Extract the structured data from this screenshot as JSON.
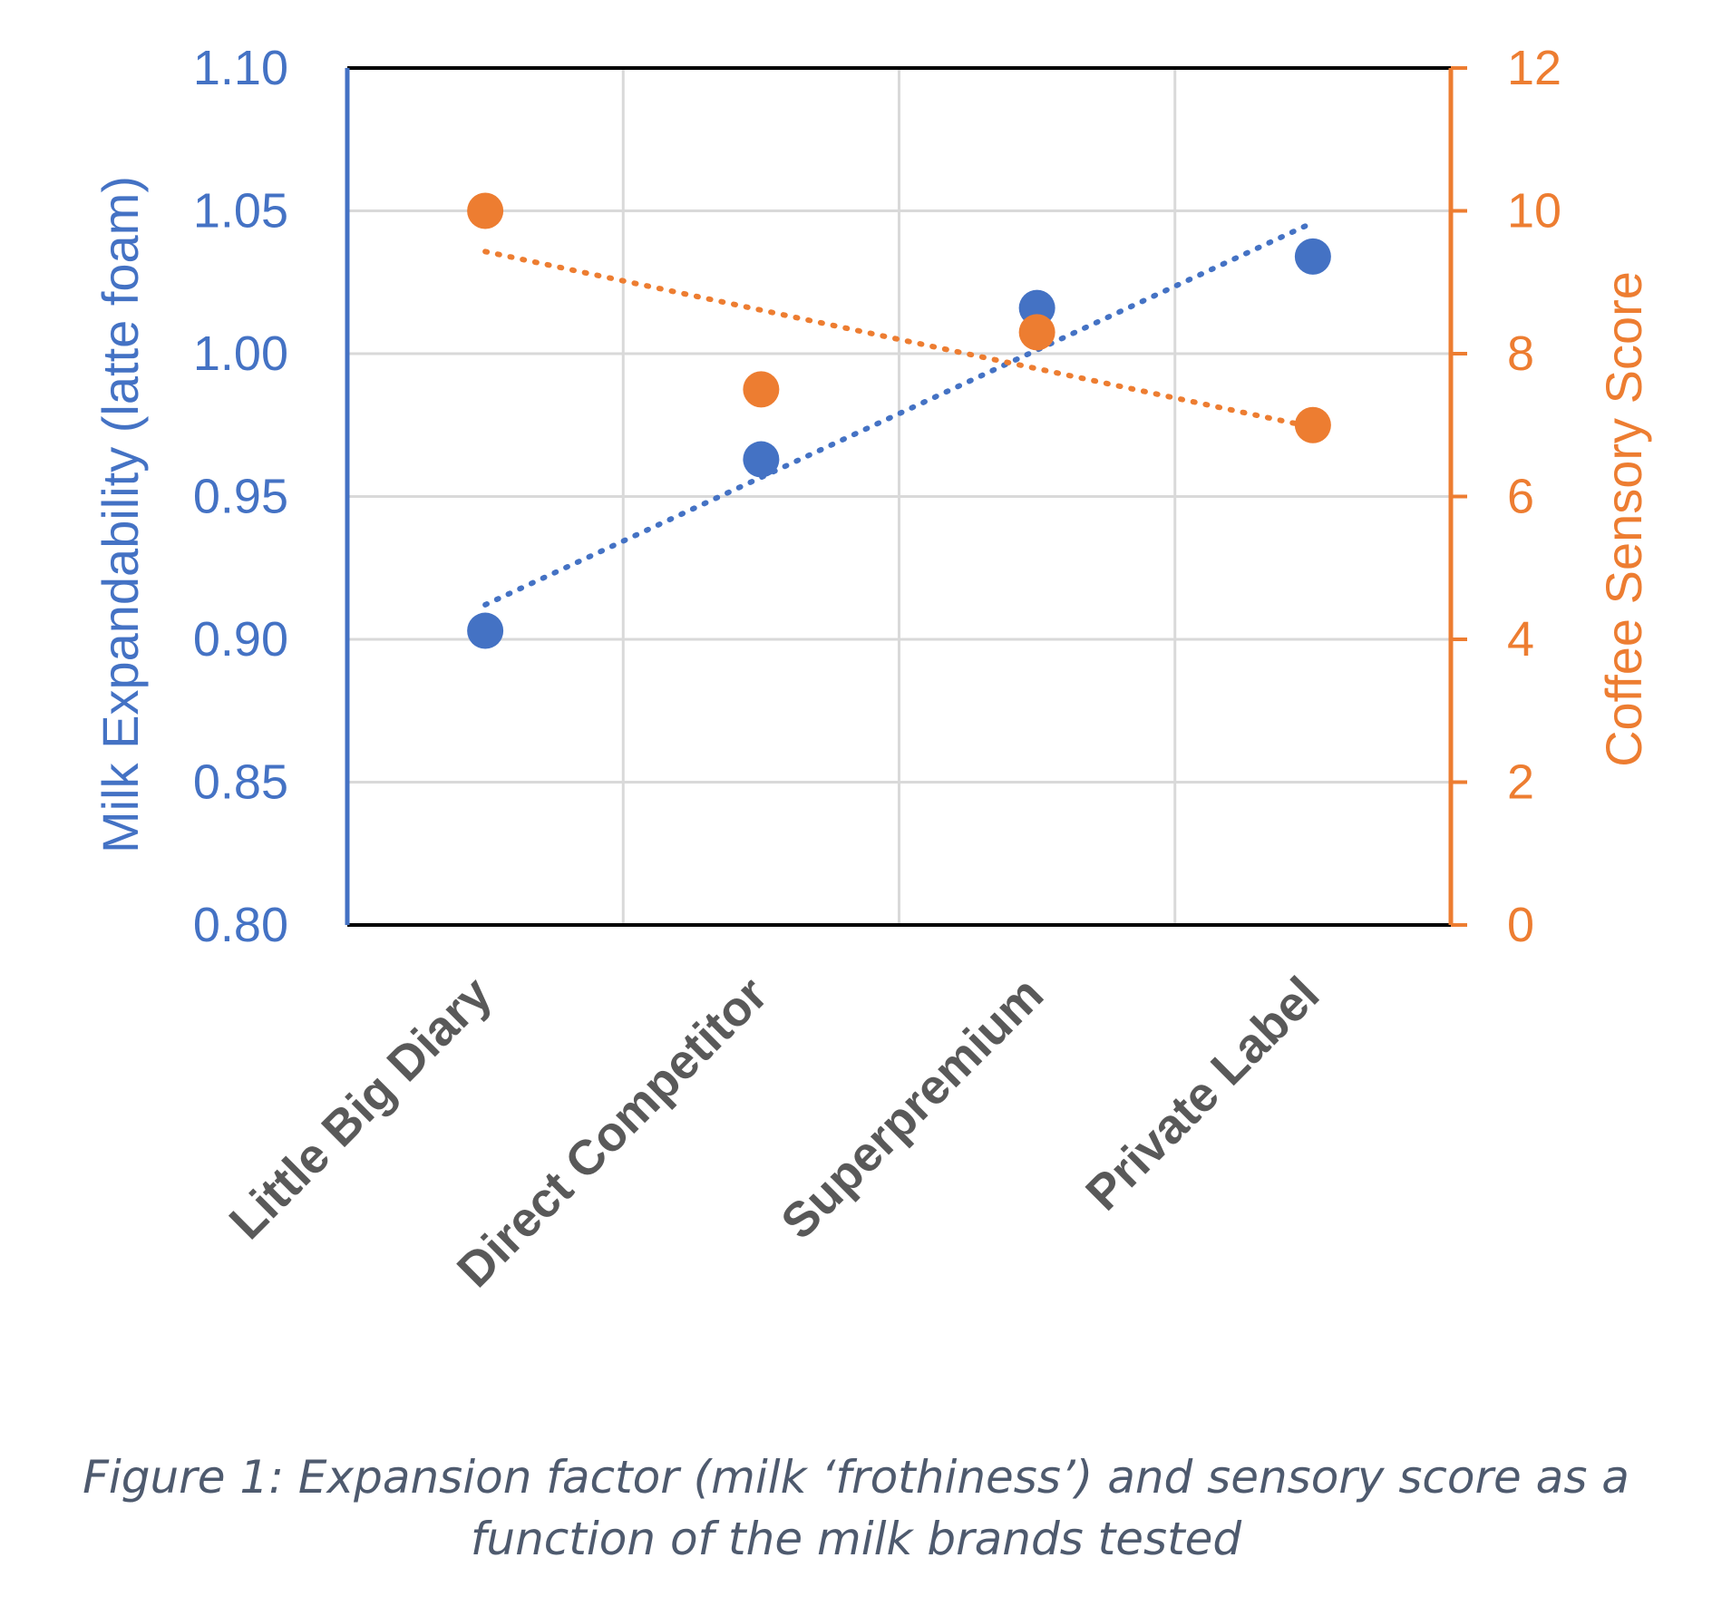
{
  "chart_data": {
    "type": "scatter",
    "categories": [
      "Little Big Diary",
      "Direct Competitor",
      "Superpremium",
      "Private Label"
    ],
    "series": [
      {
        "axis": "left",
        "color": "#4472c4",
        "values": [
          0.903,
          0.963,
          1.016,
          1.034
        ],
        "trendline": "linear-dotted"
      },
      {
        "axis": "right",
        "color": "#ed7d31",
        "values": [
          10.0,
          7.5,
          8.3,
          7.0
        ],
        "trendline": "linear-dotted"
      }
    ],
    "y_left": {
      "label": "Milk Expandability (latte foam)",
      "range": [
        0.8,
        1.1
      ],
      "ticks": [
        "0.80",
        "0.85",
        "0.90",
        "0.95",
        "1.00",
        "1.05",
        "1.10"
      ],
      "color": "#4472c4"
    },
    "y_right": {
      "label": "Coffee Sensory Score",
      "range": [
        0,
        12
      ],
      "ticks": [
        "0",
        "2",
        "4",
        "6",
        "8",
        "10",
        "12"
      ],
      "color": "#ed7d31"
    },
    "grid": true,
    "legend": "none"
  },
  "caption": {
    "line1": "Figure 1: Expansion factor (milk ‘frothiness’) and sensory score as a",
    "line2": "function of the milk brands tested"
  }
}
